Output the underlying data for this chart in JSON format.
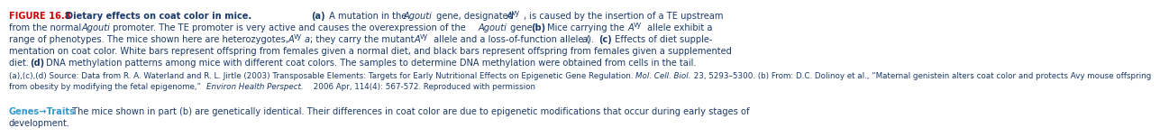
{
  "figure_label": "FIGURE 16.8",
  "figure_label_color": "#CC0000",
  "title_text": "Dietary effects on coat color in mice.",
  "body_color": "#1a3a6b",
  "genes_traits_label": "Genes→Traits",
  "genes_traits_color": "#3399cc",
  "background_color": "#ffffff",
  "font_size_main": 7.1,
  "font_size_source": 6.3,
  "font_size_genes": 7.1,
  "line1_a": "(a)",
  "line1_b": " A mutation in the ",
  "line1_c": "Agouti",
  "line1_d": " gene, designated ",
  "line1_e": "A",
  "line1_f": "vy",
  "line1_g": ", is caused by the insertion of a TE upstream",
  "line2": "from the normal ",
  "line2_italic": "Agouti",
  "line2b": " promoter. The TE promoter is very active and causes the overexpression of the ",
  "line2_italic2": "Agouti",
  "line2c": " gene. ",
  "line2_bold": "(b)",
  "line2d": " Mice carrying the ",
  "line2e_italic": "A",
  "line2e_sup": "vy",
  "line2f": " allele exhibit a",
  "line3": "range of phenotypes. The mice shown here are heterozygotes, ",
  "line3_italic": "A",
  "line3_sup": "vy",
  "line3_italic2": "a",
  "line3b": "; they carry the mutant ",
  "line3_italic3": "A",
  "line3_sup2": "vy",
  "line3c": " allele and a loss-of-function allele (",
  "line3_italic4": "a",
  "line3d": "). ",
  "line3_bold": "(c)",
  "line3e": " Effects of diet supple-",
  "line4": "mentation on coat color. White bars represent offspring from females given a normal diet, and black bars represent offspring from females given a supplemented",
  "line5": "diet. ",
  "line5_bold": "(d)",
  "line5b": " DNA methylation patterns among mice with different coat colors. The samples to determine DNA methylation were obtained from cells in the tail.",
  "source_line1": "(a),(c),(d) Source: Data from R. A. Waterland and R. L. Jirtle (2003) Transposable Elements: Targets for Early Nutritional Effects on Epigenetic Gene Regulation. ",
  "source_mol": "Mol. Cell. Biol.",
  "source_line1b": " 23, 5293–5300. (b) From: D.C. Dolinoy et al., “Maternal genistein alters coat color and protects Avy mouse offspring from obesity by modifying the fetal epigenome,” ",
  "source_environ": "Environ Health Perspect.",
  "source_line1c": " 2006 Apr,",
  "source_line2": "114(4): 567-572. Reproduced with permission",
  "genes_line": " The mice shown in part (b) are genetically identical. Their differences in coat color are due to epigenetic modifications that occur during early stages of",
  "genes_line2": "development."
}
